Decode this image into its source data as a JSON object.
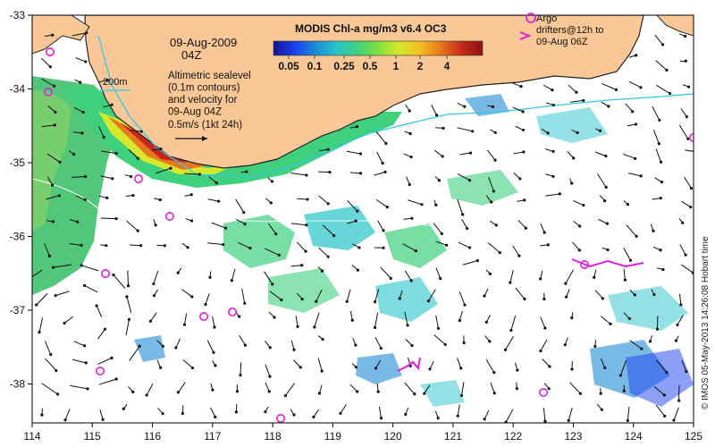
{
  "title": {
    "product": "MODIS Chl-a mg/m3 v6.4 OC3",
    "date": "09-Aug-2009",
    "time": "04Z"
  },
  "colorbar": {
    "ticks": [
      "0.05",
      "0.1",
      "0.25",
      "0.5",
      "1",
      "2",
      "4"
    ],
    "stops": [
      "#14148c",
      "#1b3ff0",
      "#1e8ad6",
      "#27c4c9",
      "#3fd07e",
      "#7fe03c",
      "#d6e82c",
      "#f0c020",
      "#e8781e",
      "#c8281a",
      "#8c1414"
    ]
  },
  "legend": {
    "contour_label": "200m",
    "contour_color": "#33c8e6",
    "description": [
      "Altimetric sealevel",
      "(0.1m contours)",
      "and velocity for",
      "09-Aug 04Z",
      "0.5m/s (1kt 24h)"
    ]
  },
  "argo": {
    "label": [
      "Argo",
      "drifters@12h to",
      "09-Aug 06Z"
    ],
    "color": "#e01ee0"
  },
  "credit": "© IMOS 05-May-2013 14:26:08 Hobart time",
  "axes": {
    "x_ticks": [
      "114",
      "115",
      "116",
      "117",
      "118",
      "119",
      "120",
      "121",
      "122",
      "123",
      "124",
      "125"
    ],
    "y_ticks": [
      "-33",
      "-34",
      "-35",
      "-36",
      "-37",
      "-38"
    ]
  },
  "colors": {
    "land": "#fac896",
    "coast": "#222222",
    "arrow": "#111111"
  }
}
